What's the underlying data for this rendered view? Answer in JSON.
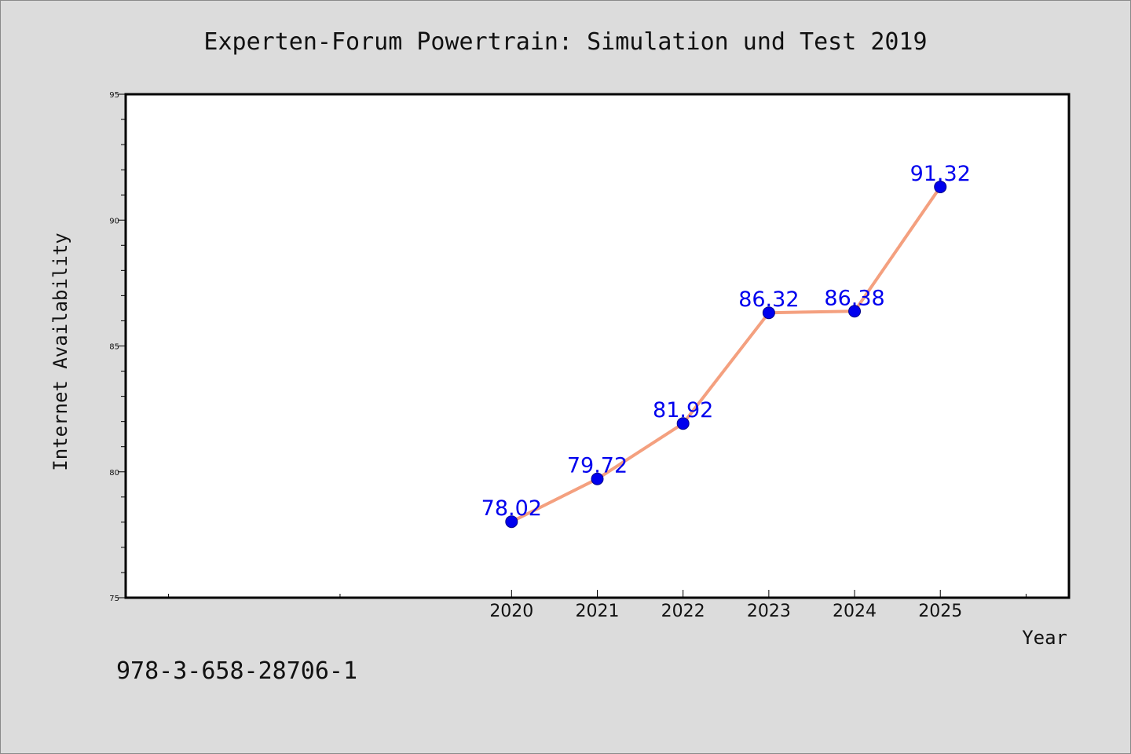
{
  "chart_data": {
    "type": "line",
    "title": "Experten-Forum Powertrain: Simulation und Test 2019",
    "xlabel": "Year",
    "ylabel": "Internet Availability",
    "x": [
      2020,
      2021,
      2022,
      2023,
      2024,
      2025
    ],
    "x_tick_labels": [
      "2020",
      "2021",
      "2022",
      "2023",
      "2024",
      "2025"
    ],
    "y_tick_labels": [
      "75",
      "80",
      "85",
      "90",
      "95"
    ],
    "ylim": [
      75,
      95
    ],
    "xlim": [
      2015.5,
      2026.5
    ],
    "series": [
      {
        "values": [
          78.02,
          79.72,
          81.92,
          86.32,
          86.38,
          91.32
        ],
        "data_labels": [
          "78.02",
          "79.72",
          "81.92",
          "86.32",
          "86.38",
          "91.32"
        ]
      }
    ],
    "colors": {
      "line": "#f4a07f",
      "marker": "#0000ee",
      "label": "#0000ee"
    },
    "grid": false,
    "legend": "none"
  },
  "footer": {
    "isbn": "978-3-658-28706-1"
  }
}
